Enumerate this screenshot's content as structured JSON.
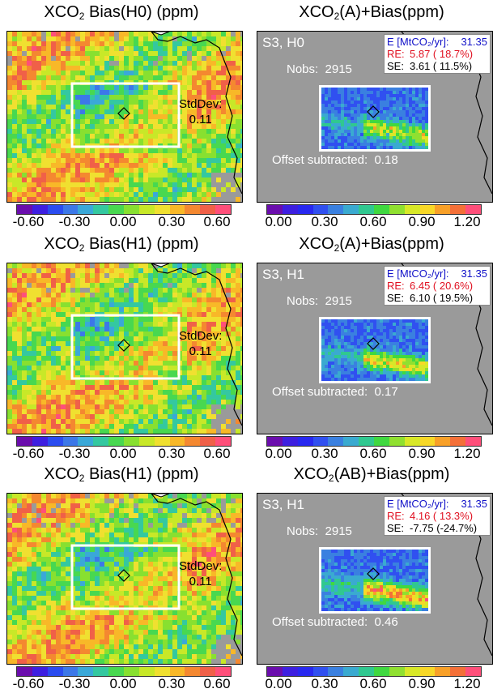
{
  "colors": {
    "diverging": [
      "#6a0dad",
      "#3d1fe0",
      "#2a4cf0",
      "#3c78e8",
      "#3aa8d8",
      "#34c8a0",
      "#48d850",
      "#88e030",
      "#c8e828",
      "#f0e030",
      "#f8b828",
      "#f48830",
      "#f06048",
      "#ff4f7a"
    ],
    "sequential": [
      "#6a0dad",
      "#3d1fe0",
      "#2828f0",
      "#3050f0",
      "#3a80e0",
      "#3aaad0",
      "#30c890",
      "#40d840",
      "#90e030",
      "#d8e828",
      "#f8d828",
      "#f8a028",
      "#f47038",
      "#ff4f7a"
    ],
    "gray": "#9a9a9a"
  },
  "rows": [
    {
      "left": {
        "title_pre": "XCO",
        "title_sub": "2",
        "title_post": " Bias(H0)  (ppm)",
        "stddev_label": "StdDev:",
        "stddev_value": "0.11",
        "ticks": [
          "-0.60",
          "-0.30",
          "0.00",
          "0.30",
          "0.60"
        ]
      },
      "right": {
        "title_pre": "XCO",
        "title_sub": "2",
        "title_post": "(A)+Bias(ppm)",
        "scenario": "S3, H0",
        "nobs_label": "Nobs:",
        "nobs_value": "2915",
        "e_label": "E [MtCO₂/yr]:",
        "e_value": "31.35",
        "re_label": "RE:",
        "re_value": "5.87 ( 18.7%)",
        "se_label": "SE:",
        "se_value": "3.61 ( 11.5%)",
        "offset_label": "Offset subtracted:",
        "offset_value": "0.18",
        "ticks": [
          "0.00",
          "0.30",
          "0.60",
          "0.90",
          "1.20"
        ]
      }
    },
    {
      "left": {
        "title_pre": "XCO",
        "title_sub": "2",
        "title_post": " Bias(H1)  (ppm)",
        "stddev_label": "StdDev:",
        "stddev_value": "0.11",
        "ticks": [
          "-0.60",
          "-0.30",
          "0.00",
          "0.30",
          "0.60"
        ]
      },
      "right": {
        "title_pre": "XCO",
        "title_sub": "2",
        "title_post": "(A)+Bias(ppm)",
        "scenario": "S3, H1",
        "nobs_label": "Nobs:",
        "nobs_value": "2915",
        "e_label": "E [MtCO₂/yr]:",
        "e_value": "31.35",
        "re_label": "RE:",
        "re_value": "6.45 ( 20.6%)",
        "se_label": "SE:",
        "se_value": "6.10 ( 19.5%)",
        "offset_label": "Offset subtracted:",
        "offset_value": "0.17",
        "ticks": [
          "0.00",
          "0.30",
          "0.60",
          "0.90",
          "1.20"
        ]
      }
    },
    {
      "left": {
        "title_pre": "XCO",
        "title_sub": "2",
        "title_post": " Bias(H1)  (ppm)",
        "stddev_label": "StdDev:",
        "stddev_value": "0.11",
        "ticks": [
          "-0.60",
          "-0.30",
          "0.00",
          "0.30",
          "0.60"
        ]
      },
      "right": {
        "title_pre": "XCO",
        "title_sub": "2",
        "title_post": "(AB)+Bias(ppm)",
        "scenario": "S3, H1",
        "nobs_label": "Nobs:",
        "nobs_value": "2915",
        "e_label": "E [MtCO₂/yr]:",
        "e_value": "31.35",
        "re_label": "RE:",
        "re_value": "4.16 ( 13.3%)",
        "se_label": "SE:",
        "se_value": "-7.75 (-24.7%)",
        "offset_label": "Offset subtracted:",
        "offset_value": "0.46",
        "ticks": [
          "0.00",
          "0.30",
          "0.60",
          "0.90",
          "1.20"
        ]
      }
    }
  ]
}
